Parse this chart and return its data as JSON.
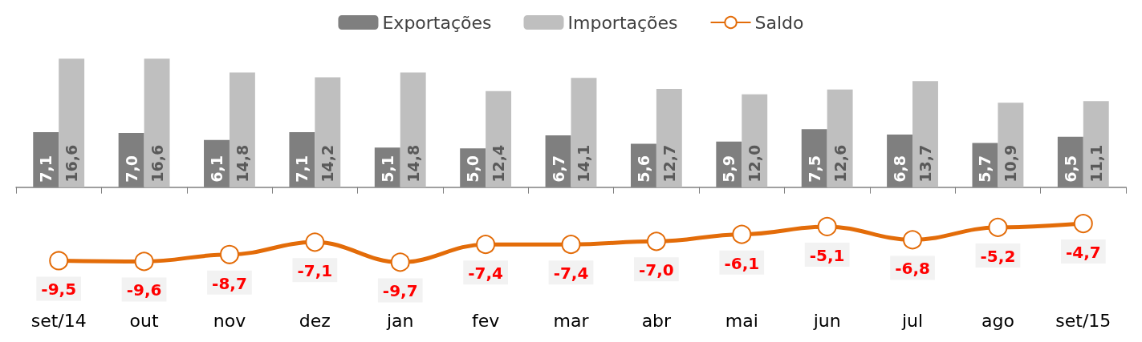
{
  "chart_data": {
    "type": "bar",
    "categories": [
      "set/14",
      "out",
      "nov",
      "dez",
      "jan",
      "fev",
      "mar",
      "abr",
      "mai",
      "jun",
      "jul",
      "ago",
      "set/15"
    ],
    "series": [
      {
        "name": "Exportações",
        "color": "#7f7f7f",
        "values": [
          7.1,
          7.0,
          6.1,
          7.1,
          5.1,
          5.0,
          6.7,
          5.6,
          5.9,
          7.5,
          6.8,
          5.7,
          6.5
        ],
        "value_labels": [
          "7,1",
          "7,0",
          "6,1",
          "7,1",
          "5,1",
          "5,0",
          "6,7",
          "5,6",
          "5,9",
          "7,5",
          "6,8",
          "5,7",
          "6,5"
        ]
      },
      {
        "name": "Importações",
        "color": "#bfbfbf",
        "values": [
          16.6,
          16.6,
          14.8,
          14.2,
          14.8,
          12.4,
          14.1,
          12.7,
          12.0,
          12.6,
          13.7,
          10.9,
          11.1
        ],
        "value_labels": [
          "16,6",
          "16,6",
          "14,8",
          "14,2",
          "14,8",
          "12,4",
          "14,1",
          "12,7",
          "12,0",
          "12,6",
          "13,7",
          "10,9",
          "11,1"
        ]
      },
      {
        "name": "Saldo",
        "type": "line",
        "color": "#e36c09",
        "marker": "circle",
        "values": [
          -9.5,
          -9.6,
          -8.7,
          -7.1,
          -9.7,
          -7.4,
          -7.4,
          -7.0,
          -6.1,
          -5.1,
          -6.8,
          -5.2,
          -4.7
        ],
        "value_labels": [
          "-9,5",
          "-9,6",
          "-8,7",
          "-7,1",
          "-9,7",
          "-7,4",
          "-7,4",
          "-7,0",
          "-6,1",
          "-5,1",
          "-6,8",
          "-5,2",
          "-4,7"
        ]
      }
    ],
    "legend": "top",
    "grid": false
  }
}
